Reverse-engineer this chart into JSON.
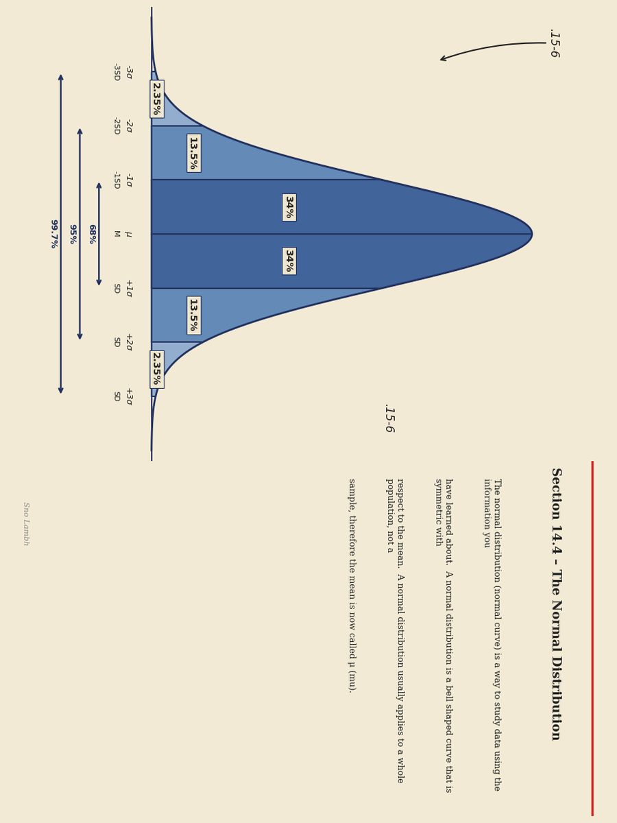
{
  "title": "Section 14.4 – The Normal Distribution",
  "description_lines": [
    "The normal distribution (normal curve) is a way to study data using the information you",
    "have learned about.  A normal distribution is a bell shaped curve that is symmetric with",
    "respect to the mean.  A normal distribution usually applies to a whole population, not a",
    "sample, therefore the mean is now called μ (mu)."
  ],
  "bg_color": "#dfd4b5",
  "paper_color": "#f5edd8",
  "text_color": "#1a1a1a",
  "curve_fill_outer": "#8faccf",
  "curve_fill_inner": "#5f88b8",
  "curve_fill_center": "#3a5f9a",
  "curve_outline": "#1a2a5a",
  "label_bg": "#f0e8d0",
  "label_text": "#1a1a1a",
  "arrow_color": "#1a2a5a",
  "section_labels": [
    "2.35%",
    "13.5%",
    "34%",
    "34%",
    "13.5%",
    "2.35%"
  ],
  "section_x": [
    -2.5,
    -1.5,
    -0.5,
    0.5,
    1.5,
    2.5
  ],
  "boundaries": [
    -3,
    -2,
    -1,
    0,
    1,
    2,
    3
  ],
  "sigma_labels": [
    "-3σ",
    "-2σ",
    "-1σ",
    "μ",
    "+1σ",
    "+2σ",
    "+3σ"
  ],
  "sd_labels": [
    "-3SD",
    "-2SD",
    "-1SD",
    "M",
    "SD",
    "SD",
    "SD"
  ],
  "span_labels": [
    "68%",
    "95%",
    "99.7%"
  ],
  "span_ranges": [
    [
      -1,
      1
    ],
    [
      -2,
      2
    ],
    [
      -3,
      3
    ]
  ],
  "annotation_left": ".15-6",
  "annotation_right": ".15-6",
  "watermark": "Sno Lambh"
}
